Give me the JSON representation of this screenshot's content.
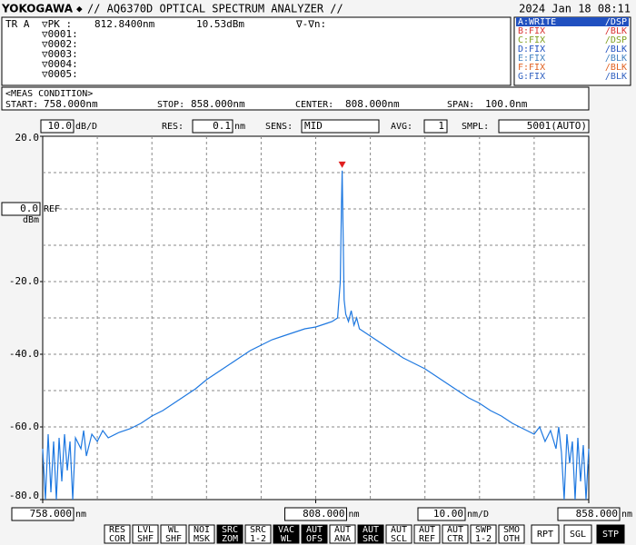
{
  "header": {
    "brand": "YOKOGAWA",
    "title": "// AQ6370D OPTICAL SPECTRUM ANALYZER //",
    "datetime": "2024 Jan 18 08:11"
  },
  "marker_panel": {
    "trace": "TR A",
    "peak_label": "▽PK :",
    "delta_label": "∇-∇n:",
    "markers": [
      "▽0001:",
      "▽0002:",
      "▽0003:",
      "▽0004:",
      "▽0005:"
    ]
  },
  "trace_list": [
    {
      "text": "A:WRITE",
      "status": "/DSP",
      "color": "#ffffff",
      "active": true
    },
    {
      "text": "B:FIX",
      "status": "/BLK",
      "color": "#d83030",
      "active": false
    },
    {
      "text": "C:FIX",
      "status": "/DSP",
      "color": "#80a020",
      "active": false
    },
    {
      "text": "D:FIX",
      "status": "/BLK",
      "color": "#2050c0",
      "active": false
    },
    {
      "text": "E:FIX",
      "status": "/BLK",
      "color": "#4080c0",
      "active": false
    },
    {
      "text": "F:FIX",
      "status": "/BLK",
      "color": "#e06020",
      "active": false
    },
    {
      "text": "G:FIX",
      "status": "/BLK",
      "color": "#3060c0",
      "active": false
    }
  ],
  "meas_condition": {
    "title": "<MEAS CONDITION>",
    "start_label": "START:",
    "start": "758.000nm",
    "stop_label": "STOP:",
    "stop": "858.000nm",
    "center_label": "CENTER:",
    "center": "808.000nm",
    "span_label": "SPAN:",
    "span": "100.0nm"
  },
  "settings": {
    "res_label": "RES:",
    "res": "0.1",
    "res_unit": "nm",
    "sens_label": "SENS:",
    "sens": "MID",
    "avg_label": "AVG:",
    "avg": "1",
    "smpl_label": "SMPL:",
    "smpl": "5001(AUTO)"
  },
  "chart_data": {
    "type": "line",
    "color": "#1e78e0",
    "grid": true,
    "x": [
      758,
      758.5,
      759,
      759.5,
      760,
      760.5,
      761,
      761.5,
      762,
      762.5,
      763,
      763.5,
      764,
      765,
      765.5,
      766,
      767,
      768,
      769,
      770,
      772,
      774,
      776,
      778,
      780,
      782,
      784,
      786,
      788,
      790,
      792,
      794,
      796,
      798,
      800,
      802,
      804,
      806,
      808,
      810,
      811,
      812,
      812.5,
      812.7,
      812.84,
      813,
      813.2,
      813.5,
      814,
      814.5,
      815,
      815.5,
      816,
      817,
      818,
      820,
      822,
      824,
      826,
      828,
      830,
      832,
      834,
      836,
      838,
      840,
      842,
      844,
      846,
      848,
      849,
      850,
      851,
      852,
      852.5,
      853,
      853.5,
      854,
      854.5,
      855,
      855.5,
      856,
      856.5,
      857,
      857.5,
      858
    ],
    "values": [
      -66,
      -80,
      -62,
      -78,
      -64,
      -80,
      -63,
      -75,
      -62,
      -72,
      -64,
      -80,
      -63,
      -66,
      -61,
      -68,
      -62,
      -64,
      -61,
      -63,
      -61.5,
      -60.5,
      -59,
      -57,
      -55.5,
      -53.5,
      -51.5,
      -49.5,
      -47,
      -45,
      -43,
      -41,
      -39,
      -37.5,
      -36,
      -35,
      -34,
      -33,
      -32.5,
      -31.5,
      -31,
      -30,
      -20,
      0,
      10.53,
      -5,
      -25,
      -29,
      -31,
      -28,
      -32,
      -30,
      -33,
      -34,
      -35,
      -37,
      -39,
      -41,
      -42.5,
      -44,
      -46,
      -48,
      -50,
      -52,
      -53.5,
      -55.5,
      -57,
      -59,
      -60.5,
      -62,
      -60,
      -64,
      -61,
      -66,
      -60,
      -67,
      -80,
      -62,
      -70,
      -64,
      -80,
      -63,
      -75,
      -65,
      -80,
      -66
    ],
    "xlim": [
      758,
      858
    ],
    "ylim": [
      -80,
      20
    ],
    "xticks": [
      {
        "value": 758,
        "label": "758.000"
      },
      {
        "value": 808,
        "label": "808.000"
      },
      {
        "value": 858,
        "label": "858.000"
      }
    ],
    "x_unit": "nm",
    "yticks": [
      {
        "value": 20,
        "label": "20.0"
      },
      {
        "value": -20,
        "label": "-20.0"
      },
      {
        "value": -40,
        "label": "-40.0"
      },
      {
        "value": -60,
        "label": "-60.0"
      },
      {
        "value": -80,
        "label": "-80.0"
      }
    ],
    "ref_level": {
      "value": 0,
      "label": "0.0"
    },
    "ref_text": "REF",
    "y_unit": "dBm",
    "ydiv": {
      "value": 10,
      "label": "10.0"
    },
    "ydiv_unit": "dB/D",
    "xdiv": {
      "value": 10,
      "label": "10.00"
    },
    "xdiv_unit": "nm/D",
    "peak": {
      "x": 812.84,
      "y": 10.53,
      "x_label": "812.8400nm",
      "y_label": "10.53dBm",
      "color": "#e02020"
    }
  },
  "buttons": [
    {
      "lines": [
        "RES",
        "COR"
      ],
      "active": false
    },
    {
      "lines": [
        "LVL",
        "SHF"
      ],
      "active": false
    },
    {
      "lines": [
        "WL",
        "SHF"
      ],
      "active": false
    },
    {
      "lines": [
        "NOI",
        "MSK"
      ],
      "active": false
    },
    {
      "lines": [
        "SRC",
        "ZOM"
      ],
      "active": true
    },
    {
      "lines": [
        "SRC",
        "1-2"
      ],
      "active": false
    },
    {
      "lines": [
        "VAC",
        "WL"
      ],
      "active": true
    },
    {
      "lines": [
        "AUT",
        "OFS"
      ],
      "active": true
    },
    {
      "lines": [
        "AUT",
        "ANA"
      ],
      "active": false
    },
    {
      "lines": [
        "AUT",
        "SRC"
      ],
      "active": true
    },
    {
      "lines": [
        "AUT",
        "SCL"
      ],
      "active": false
    },
    {
      "lines": [
        "AUT",
        "REF"
      ],
      "active": false
    },
    {
      "lines": [
        "AUT",
        "CTR"
      ],
      "active": false
    },
    {
      "lines": [
        "SWP",
        "1-2"
      ],
      "active": false
    },
    {
      "lines": [
        "SMO",
        "OTH"
      ],
      "active": false
    },
    {
      "lines": [
        "RPT"
      ],
      "active": false
    },
    {
      "lines": [
        "SGL"
      ],
      "active": false
    },
    {
      "lines": [
        "STP"
      ],
      "active": true
    }
  ]
}
